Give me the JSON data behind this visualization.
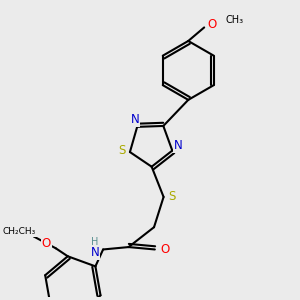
{
  "bg_color": "#ebebeb",
  "bond_color": "#000000",
  "bond_width": 1.5,
  "atom_colors": {
    "N": "#0000cc",
    "S": "#aaaa00",
    "O": "#ff0000",
    "C": "#000000",
    "H": "#5a9090"
  },
  "font_size_atom": 8.5,
  "font_size_small": 7.0
}
